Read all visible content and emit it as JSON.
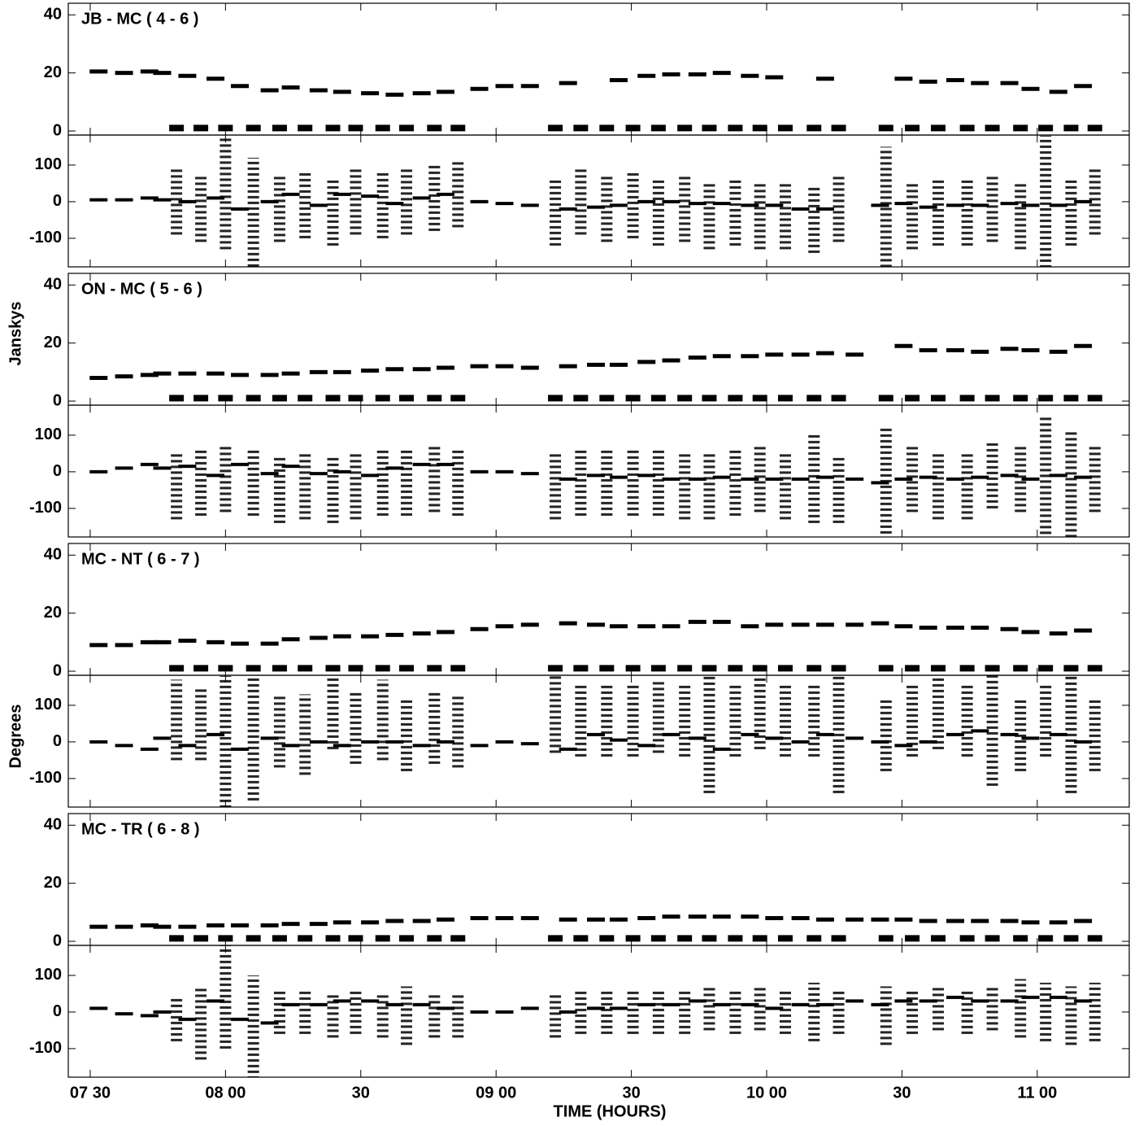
{
  "x_axis": {
    "label": "TIME (HOURS)",
    "xlim": [
      7.419,
      11.34
    ],
    "xticks": [
      {
        "value": 7.5,
        "label": "07 30"
      },
      {
        "value": 8,
        "label": "08 00"
      },
      {
        "value": 8.5,
        "label": "30"
      },
      {
        "value": 9,
        "label": "09 00"
      },
      {
        "value": 9.5,
        "label": "30"
      },
      {
        "value": 10,
        "label": "10 00"
      },
      {
        "value": 10.5,
        "label": "30"
      },
      {
        "value": 11,
        "label": "11 00"
      }
    ]
  },
  "y_labels": [
    "Janskys",
    "Degrees"
  ],
  "target_x": [
    7.531,
    7.625,
    7.719,
    7.766,
    7.859,
    7.963,
    8.053,
    8.163,
    8.241,
    8.344,
    8.431,
    8.534,
    8.625,
    8.725,
    8.813,
    8.938,
    9.031,
    9.125,
    9.266,
    9.369,
    9.453,
    9.556,
    9.647,
    9.744,
    9.834,
    9.938,
    10.028,
    10.125,
    10.216,
    10.325,
    10.419,
    10.506,
    10.597,
    10.697,
    10.788,
    10.897,
    10.975,
    11.078,
    11.169
  ],
  "calibrator_x": [
    7.819,
    7.909,
    8.0,
    8.103,
    8.2,
    8.294,
    8.397,
    8.481,
    8.581,
    8.669,
    8.772,
    8.859,
    9.219,
    9.313,
    9.409,
    9.506,
    9.6,
    9.697,
    9.788,
    9.884,
    9.975,
    10.069,
    10.175,
    10.266,
    10.441,
    10.538,
    10.634,
    10.741,
    10.834,
    10.938,
    11.031,
    11.125,
    11.213
  ],
  "chart_data": [
    {
      "type": "scatter",
      "title": "JB - MC ( 4 - 6 )",
      "amplitude": {
        "ylim": [
          -1.4,
          44
        ],
        "yticks": [
          0,
          20,
          40
        ],
        "target": [
          20.5,
          20,
          20.5,
          20,
          19,
          18,
          15.5,
          14,
          15,
          14,
          13.5,
          13,
          12.5,
          13,
          13.5,
          14.5,
          15.5,
          15.5,
          16.5,
          null,
          17.5,
          19,
          19.5,
          19.5,
          20,
          19,
          18.5,
          null,
          18,
          null,
          null,
          18,
          17,
          17.5,
          16.5,
          16.5,
          14.5,
          13.5,
          15.5
        ],
        "calibrator": [
          1,
          1,
          1,
          1,
          1,
          1,
          1,
          1,
          1,
          1,
          1,
          1,
          1,
          1,
          1,
          1,
          1,
          1,
          1,
          1,
          1,
          1,
          1,
          1,
          1,
          1,
          1,
          1,
          1,
          1,
          1,
          1,
          1
        ]
      },
      "phase": {
        "ylim": [
          -178,
          182
        ],
        "yticks": [
          -100,
          0,
          100
        ],
        "target": [
          5,
          5,
          10,
          5,
          0,
          10,
          -20,
          0,
          20,
          -10,
          20,
          15,
          -5,
          10,
          20,
          0,
          -5,
          -10,
          -20,
          -15,
          -10,
          0,
          0,
          -5,
          -5,
          -10,
          -10,
          -20,
          -20,
          null,
          -10,
          -5,
          -15,
          -10,
          -10,
          -5,
          -10,
          -10,
          0
        ],
        "calibrator": [
          0,
          -20,
          50,
          -60,
          -20,
          -10,
          -30,
          0,
          -10,
          0,
          10,
          20,
          -30,
          0,
          -20,
          -10,
          -30,
          -20,
          -40,
          -30,
          -40,
          -40,
          -50,
          -20,
          -30,
          -40,
          -30,
          -30,
          -20,
          -40,
          0,
          -30,
          0
        ],
        "errors": [
          90,
          90,
          180,
          180,
          90,
          90,
          90,
          90,
          90,
          90,
          90,
          90,
          90,
          90,
          90,
          90,
          90,
          90,
          90,
          90,
          90,
          90,
          90,
          90,
          180,
          90,
          90,
          90,
          90,
          90,
          180,
          90,
          90
        ]
      }
    },
    {
      "type": "scatter",
      "title": "ON - MC ( 5 - 6 )",
      "amplitude": {
        "ylim": [
          -1.4,
          44
        ],
        "yticks": [
          0,
          20,
          40
        ],
        "target": [
          8,
          8.5,
          9,
          9.5,
          9.5,
          9.5,
          9,
          9,
          9.5,
          10,
          10,
          10.5,
          11,
          11,
          11.5,
          12,
          12,
          11.5,
          12,
          12.5,
          12.5,
          13.5,
          14,
          15,
          15.5,
          15.5,
          16,
          16,
          16.5,
          16,
          null,
          19,
          17.5,
          17.5,
          17,
          18,
          17.5,
          17,
          19
        ],
        "calibrator": [
          1,
          1,
          1,
          1,
          1,
          1,
          1,
          1,
          1,
          1,
          1,
          1,
          1,
          1,
          1,
          1,
          1,
          1,
          1,
          1,
          1,
          1,
          1,
          1,
          1,
          1,
          1,
          1,
          1,
          1,
          1,
          1,
          1
        ]
      },
      "phase": {
        "ylim": [
          -178,
          182
        ],
        "yticks": [
          -100,
          0,
          100
        ],
        "target": [
          0,
          10,
          20,
          10,
          15,
          -10,
          20,
          -5,
          15,
          -5,
          0,
          -10,
          10,
          20,
          20,
          0,
          0,
          -5,
          -20,
          -10,
          -15,
          -10,
          -20,
          -20,
          -15,
          -20,
          -20,
          -20,
          -15,
          -20,
          -30,
          -20,
          -15,
          -20,
          -15,
          -10,
          -20,
          -10,
          -15
        ],
        "calibrator": [
          -40,
          -30,
          -20,
          -30,
          -50,
          -40,
          -50,
          -40,
          -30,
          -30,
          -20,
          -30,
          -40,
          -30,
          -30,
          -30,
          -30,
          -40,
          -40,
          -30,
          -20,
          -40,
          -20,
          -50,
          -40,
          -20,
          -40,
          -40,
          -10,
          -20,
          -10,
          -50,
          -20
        ],
        "errors": [
          90,
          90,
          90,
          90,
          90,
          90,
          90,
          90,
          90,
          90,
          90,
          90,
          90,
          90,
          90,
          90,
          90,
          90,
          90,
          90,
          90,
          90,
          120,
          90,
          160,
          90,
          90,
          90,
          90,
          90,
          160,
          160,
          90
        ]
      }
    },
    {
      "type": "scatter",
      "title": "MC - NT ( 6 - 7 )",
      "amplitude": {
        "ylim": [
          -1.4,
          44
        ],
        "yticks": [
          0,
          20,
          40
        ],
        "target": [
          9,
          9,
          10,
          10,
          10.5,
          10,
          9.5,
          9.5,
          11,
          11.5,
          12,
          12,
          12.5,
          13,
          13.5,
          14.5,
          15.5,
          16,
          16.5,
          16,
          15.5,
          15.5,
          15.5,
          17,
          17,
          15.5,
          16,
          16,
          16,
          16,
          16.5,
          15.5,
          15,
          15,
          15,
          14.5,
          13.5,
          13,
          14
        ],
        "calibrator": [
          1,
          1,
          1,
          1,
          1,
          1,
          1,
          1,
          1,
          1,
          1,
          1,
          1,
          1,
          1,
          1,
          1,
          1,
          1,
          1,
          1,
          1,
          1,
          1,
          1,
          1,
          1,
          1,
          1,
          1,
          1,
          1,
          1
        ]
      },
      "phase": {
        "ylim": [
          -178,
          182
        ],
        "yticks": [
          -100,
          0,
          100
        ],
        "target": [
          0,
          -10,
          -20,
          10,
          -10,
          20,
          -20,
          10,
          -10,
          0,
          -10,
          0,
          0,
          -10,
          0,
          -10,
          0,
          -5,
          -20,
          20,
          5,
          -10,
          20,
          10,
          -20,
          20,
          10,
          0,
          20,
          10,
          0,
          -10,
          0,
          20,
          30,
          20,
          10,
          20,
          0
        ],
        "calibrator": [
          60,
          50,
          0,
          20,
          30,
          20,
          80,
          40,
          60,
          20,
          40,
          30,
          80,
          60,
          60,
          60,
          70,
          60,
          40,
          60,
          80,
          60,
          60,
          40,
          20,
          60,
          80,
          60,
          60,
          20,
          60,
          40,
          20
        ],
        "errors": [
          110,
          100,
          180,
          180,
          100,
          110,
          100,
          100,
          110,
          100,
          100,
          100,
          110,
          100,
          100,
          100,
          100,
          100,
          180,
          100,
          100,
          100,
          100,
          180,
          100,
          100,
          100,
          100,
          180,
          100,
          100,
          180,
          100
        ]
      }
    },
    {
      "type": "scatter",
      "title": "MC - TR ( 6 - 8 )",
      "amplitude": {
        "ylim": [
          -1.4,
          44
        ],
        "yticks": [
          0,
          20,
          40
        ],
        "target": [
          5,
          5,
          5.5,
          5,
          5,
          5.5,
          5.5,
          5.5,
          6,
          6,
          6.5,
          6.5,
          7,
          7,
          7.5,
          8,
          8,
          8,
          7.5,
          7.5,
          7.5,
          8,
          8.5,
          8.5,
          8.5,
          8.5,
          8,
          8,
          7.5,
          7.5,
          7.5,
          7.5,
          7,
          7,
          7,
          7,
          6.5,
          6.5,
          7
        ],
        "calibrator": [
          1,
          1,
          1,
          1,
          1,
          1,
          1,
          1,
          1,
          1,
          1,
          1,
          1,
          1,
          1,
          1,
          1,
          1,
          1,
          1,
          1,
          1,
          1,
          1,
          1,
          1,
          1,
          1,
          1,
          1,
          1,
          1,
          1
        ]
      },
      "phase": {
        "ylim": [
          -178,
          182
        ],
        "yticks": [
          -100,
          0,
          100
        ],
        "target": [
          10,
          -5,
          -10,
          0,
          -20,
          30,
          -20,
          -30,
          20,
          20,
          30,
          30,
          20,
          20,
          10,
          0,
          0,
          10,
          0,
          10,
          10,
          20,
          20,
          30,
          20,
          20,
          10,
          20,
          20,
          30,
          20,
          30,
          30,
          40,
          30,
          30,
          40,
          40,
          30
        ],
        "calibrator": [
          -20,
          -30,
          80,
          -80,
          0,
          0,
          -10,
          0,
          -10,
          -10,
          -10,
          -10,
          -10,
          0,
          0,
          0,
          0,
          0,
          10,
          0,
          10,
          0,
          0,
          0,
          -10,
          0,
          10,
          0,
          10,
          10,
          0,
          -10,
          0
        ],
        "errors": [
          60,
          100,
          180,
          180,
          60,
          60,
          60,
          60,
          60,
          80,
          60,
          60,
          60,
          60,
          60,
          60,
          60,
          60,
          60,
          60,
          60,
          60,
          80,
          60,
          80,
          60,
          60,
          60,
          60,
          80,
          80,
          80,
          80
        ]
      }
    }
  ]
}
